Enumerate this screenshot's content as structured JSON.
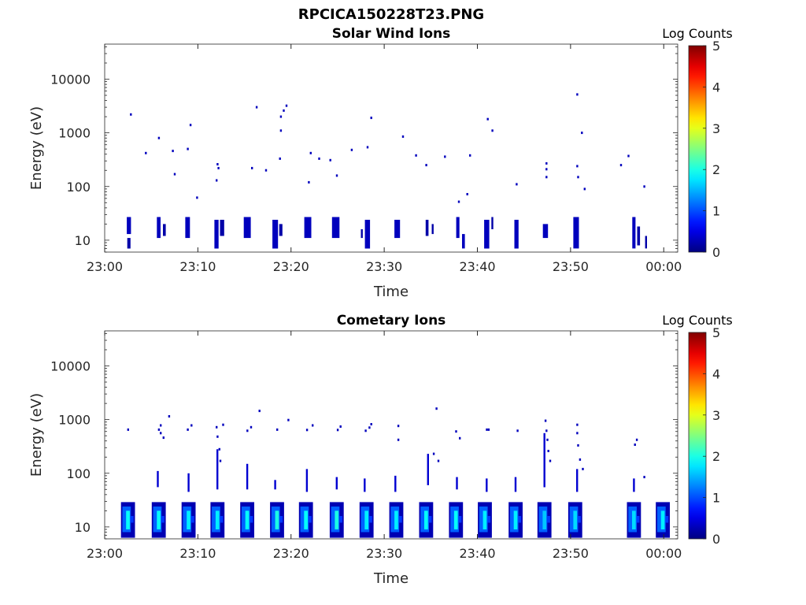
{
  "figure": {
    "title": "RPCICA150228T23.PNG"
  },
  "chart_data": [
    {
      "type": "heatmap",
      "title": "Solar Wind Ions",
      "xlabel": "Time",
      "ylabel": "Energy (eV)",
      "yscale": "log",
      "ylim": [
        6,
        45000
      ],
      "xlim_minutes": [
        0,
        61.5
      ],
      "xticks": [
        "23:00",
        "23:10",
        "23:20",
        "23:30",
        "23:40",
        "23:50",
        "00:00"
      ],
      "xticks_minutes": [
        0,
        10,
        20,
        30,
        40,
        50,
        60
      ],
      "yticks": [
        10,
        100,
        1000,
        10000
      ],
      "yticklabels": [
        "10",
        "100",
        "1000",
        "10000"
      ],
      "colorbar": {
        "label": "Log Counts",
        "min": 0,
        "max": 5,
        "ticks": [
          "0",
          "1",
          "2",
          "3",
          "4",
          "5"
        ]
      },
      "bands": [
        {
          "t": 2.6,
          "w": 0.45,
          "e_lo": 13,
          "e_hi": 27,
          "v": 0.3
        },
        {
          "t": 2.6,
          "w": 0.35,
          "e_lo": 7,
          "e_hi": 11,
          "v": 0.2
        },
        {
          "t": 5.8,
          "w": 0.4,
          "e_lo": 11,
          "e_hi": 27,
          "v": 0.3
        },
        {
          "t": 6.4,
          "w": 0.3,
          "e_lo": 12,
          "e_hi": 20,
          "v": 0.2
        },
        {
          "t": 8.9,
          "w": 0.5,
          "e_lo": 11,
          "e_hi": 27,
          "v": 0.3
        },
        {
          "t": 12.0,
          "w": 0.45,
          "e_lo": 7,
          "e_hi": 24,
          "v": 0.3
        },
        {
          "t": 12.6,
          "w": 0.45,
          "e_lo": 12,
          "e_hi": 24,
          "v": 0.2
        },
        {
          "t": 15.3,
          "w": 0.75,
          "e_lo": 11,
          "e_hi": 27,
          "v": 0.3
        },
        {
          "t": 18.3,
          "w": 0.6,
          "e_lo": 7,
          "e_hi": 24,
          "v": 0.3
        },
        {
          "t": 18.9,
          "w": 0.35,
          "e_lo": 12,
          "e_hi": 20,
          "v": 0.2
        },
        {
          "t": 21.8,
          "w": 0.75,
          "e_lo": 11,
          "e_hi": 27,
          "v": 0.3
        },
        {
          "t": 24.8,
          "w": 0.8,
          "e_lo": 11,
          "e_hi": 27,
          "v": 0.3
        },
        {
          "t": 28.2,
          "w": 0.55,
          "e_lo": 7,
          "e_hi": 24,
          "v": 0.3
        },
        {
          "t": 27.6,
          "w": 0.2,
          "e_lo": 11,
          "e_hi": 16,
          "v": 0.2
        },
        {
          "t": 31.4,
          "w": 0.6,
          "e_lo": 11,
          "e_hi": 24,
          "v": 0.3
        },
        {
          "t": 34.6,
          "w": 0.3,
          "e_lo": 12,
          "e_hi": 24,
          "v": 0.2
        },
        {
          "t": 35.2,
          "w": 0.2,
          "e_lo": 13,
          "e_hi": 20,
          "v": 0.2
        },
        {
          "t": 37.9,
          "w": 0.35,
          "e_lo": 11,
          "e_hi": 27,
          "v": 0.3
        },
        {
          "t": 38.5,
          "w": 0.3,
          "e_lo": 7,
          "e_hi": 13,
          "v": 0.3
        },
        {
          "t": 41.0,
          "w": 0.55,
          "e_lo": 7,
          "e_hi": 24,
          "v": 0.3
        },
        {
          "t": 41.6,
          "w": 0.2,
          "e_lo": 16,
          "e_hi": 27,
          "v": 0.2
        },
        {
          "t": 44.2,
          "w": 0.45,
          "e_lo": 7,
          "e_hi": 24,
          "v": 0.3
        },
        {
          "t": 47.3,
          "w": 0.55,
          "e_lo": 11,
          "e_hi": 20,
          "v": 0.3
        },
        {
          "t": 50.6,
          "w": 0.6,
          "e_lo": 7,
          "e_hi": 27,
          "v": 0.3
        },
        {
          "t": 56.8,
          "w": 0.35,
          "e_lo": 7,
          "e_hi": 27,
          "v": 0.3
        },
        {
          "t": 57.3,
          "w": 0.3,
          "e_lo": 8,
          "e_hi": 18,
          "v": 0.2
        },
        {
          "t": 58.1,
          "w": 0.2,
          "e_lo": 7,
          "e_hi": 12,
          "v": 0.2
        }
      ],
      "dots": [
        [
          2.8,
          2200
        ],
        [
          4.4,
          420
        ],
        [
          5.8,
          800
        ],
        [
          7.3,
          460
        ],
        [
          7.5,
          170
        ],
        [
          8.9,
          500
        ],
        [
          9.2,
          1400
        ],
        [
          9.9,
          62
        ],
        [
          12.1,
          260
        ],
        [
          12.2,
          220
        ],
        [
          12.0,
          130
        ],
        [
          15.8,
          220
        ],
        [
          16.3,
          3000
        ],
        [
          17.3,
          200
        ],
        [
          18.8,
          330
        ],
        [
          18.9,
          1100
        ],
        [
          18.9,
          2000
        ],
        [
          19.2,
          2600
        ],
        [
          19.5,
          3200
        ],
        [
          21.9,
          120
        ],
        [
          22.1,
          420
        ],
        [
          23.0,
          330
        ],
        [
          24.2,
          310
        ],
        [
          24.9,
          160
        ],
        [
          26.5,
          480
        ],
        [
          28.2,
          540
        ],
        [
          28.6,
          1900
        ],
        [
          32.0,
          850
        ],
        [
          33.4,
          380
        ],
        [
          34.5,
          250
        ],
        [
          36.5,
          360
        ],
        [
          38.0,
          52
        ],
        [
          38.9,
          72
        ],
        [
          39.2,
          380
        ],
        [
          41.1,
          1800
        ],
        [
          41.6,
          1100
        ],
        [
          44.2,
          110
        ],
        [
          47.4,
          270
        ],
        [
          47.4,
          210
        ],
        [
          47.4,
          150
        ],
        [
          50.7,
          5200
        ],
        [
          50.7,
          240
        ],
        [
          50.8,
          150
        ],
        [
          51.2,
          1000
        ],
        [
          51.5,
          90
        ],
        [
          55.4,
          250
        ],
        [
          56.2,
          370
        ],
        [
          57.9,
          100
        ]
      ]
    },
    {
      "type": "heatmap",
      "title": "Cometary Ions",
      "xlabel": "Time",
      "ylabel": "Energy (eV)",
      "yscale": "log",
      "ylim": [
        6,
        45000
      ],
      "xlim_minutes": [
        0,
        61.5
      ],
      "xticks": [
        "23:00",
        "23:10",
        "23:20",
        "23:30",
        "23:40",
        "23:50",
        "00:00"
      ],
      "xticks_minutes": [
        0,
        10,
        20,
        30,
        40,
        50,
        60
      ],
      "yticks": [
        10,
        100,
        1000,
        10000
      ],
      "yticklabels": [
        "10",
        "100",
        "1000",
        "10000"
      ],
      "colorbar": {
        "label": "Log Counts",
        "min": 0,
        "max": 5,
        "ticks": [
          "0",
          "1",
          "2",
          "3",
          "4",
          "5"
        ]
      },
      "bursts": [
        {
          "t": 2.5,
          "peak": 1.9
        },
        {
          "t": 5.8,
          "peak": 1.9
        },
        {
          "t": 9.0,
          "peak": 1.8
        },
        {
          "t": 12.1,
          "peak": 1.8
        },
        {
          "t": 15.3,
          "peak": 1.9
        },
        {
          "t": 18.5,
          "peak": 2.0
        },
        {
          "t": 21.6,
          "peak": 1.9
        },
        {
          "t": 24.9,
          "peak": 2.0
        },
        {
          "t": 28.1,
          "peak": 1.8
        },
        {
          "t": 31.3,
          "peak": 1.8
        },
        {
          "t": 34.5,
          "peak": 1.9
        },
        {
          "t": 37.7,
          "peak": 1.9
        },
        {
          "t": 40.8,
          "peak": 1.8
        },
        {
          "t": 44.1,
          "peak": 1.8
        },
        {
          "t": 47.2,
          "peak": 1.6
        },
        {
          "t": 50.5,
          "peak": 1.7
        },
        {
          "t": 56.8,
          "peak": 1.7
        },
        {
          "t": 59.9,
          "peak": 1.8
        }
      ],
      "dots": [
        [
          2.5,
          650
        ],
        [
          5.8,
          650
        ],
        [
          6.0,
          780
        ],
        [
          6.3,
          460
        ],
        [
          6.0,
          560
        ],
        [
          6.9,
          1150
        ],
        [
          8.9,
          650
        ],
        [
          9.3,
          780
        ],
        [
          12.0,
          720
        ],
        [
          12.1,
          480
        ],
        [
          12.3,
          280
        ],
        [
          12.4,
          170
        ],
        [
          12.7,
          800
        ],
        [
          15.3,
          620
        ],
        [
          15.7,
          720
        ],
        [
          16.6,
          1450
        ],
        [
          18.5,
          650
        ],
        [
          19.7,
          980
        ],
        [
          21.7,
          640
        ],
        [
          22.3,
          780
        ],
        [
          25.0,
          640
        ],
        [
          25.3,
          740
        ],
        [
          28.0,
          620
        ],
        [
          28.4,
          710
        ],
        [
          28.6,
          820
        ],
        [
          31.5,
          760
        ],
        [
          31.5,
          420
        ],
        [
          35.3,
          230
        ],
        [
          35.6,
          1600
        ],
        [
          35.8,
          170
        ],
        [
          37.7,
          600
        ],
        [
          38.1,
          450
        ],
        [
          41.0,
          650
        ],
        [
          41.2,
          650
        ],
        [
          44.3,
          620
        ],
        [
          47.3,
          950
        ],
        [
          47.4,
          620
        ],
        [
          47.5,
          420
        ],
        [
          47.6,
          260
        ],
        [
          47.8,
          170
        ],
        [
          50.7,
          800
        ],
        [
          50.7,
          560
        ],
        [
          50.8,
          330
        ],
        [
          51.0,
          180
        ],
        [
          51.3,
          120
        ],
        [
          56.9,
          340
        ],
        [
          57.1,
          420
        ],
        [
          57.9,
          85
        ]
      ],
      "spikes": [
        [
          5.7,
          55,
          110
        ],
        [
          9.0,
          45,
          100
        ],
        [
          12.1,
          50,
          280
        ],
        [
          15.3,
          50,
          150
        ],
        [
          18.3,
          50,
          75
        ],
        [
          21.7,
          45,
          120
        ],
        [
          24.9,
          50,
          85
        ],
        [
          27.9,
          45,
          80
        ],
        [
          31.2,
          45,
          90
        ],
        [
          34.7,
          60,
          230
        ],
        [
          37.8,
          50,
          85
        ],
        [
          41.0,
          45,
          80
        ],
        [
          44.1,
          45,
          85
        ],
        [
          47.2,
          55,
          560
        ],
        [
          50.7,
          45,
          120
        ],
        [
          56.8,
          45,
          80
        ]
      ]
    }
  ]
}
